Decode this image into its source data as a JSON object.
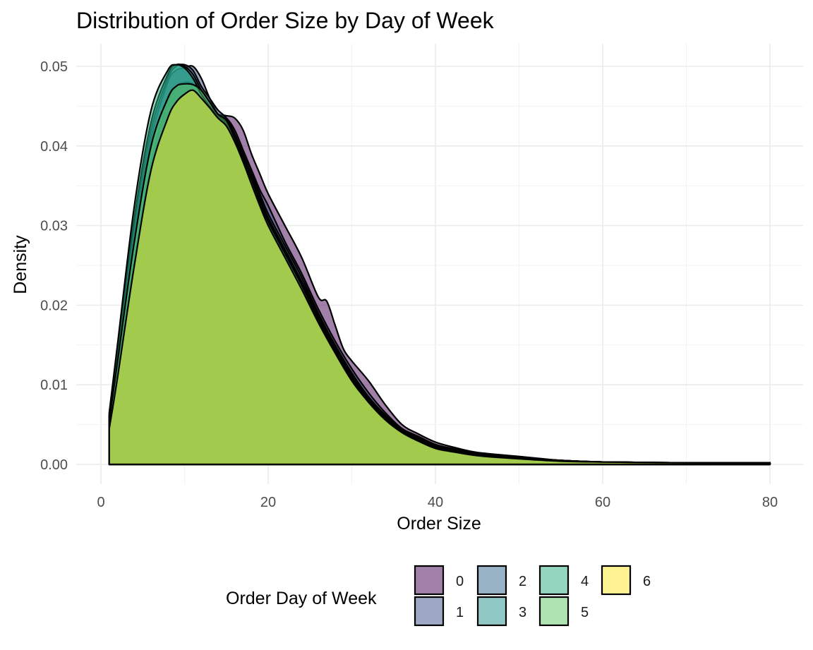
{
  "chart_data": {
    "type": "area",
    "title": "Distribution of Order Size by Day of Week",
    "xlabel": "Order Size",
    "ylabel": "Density",
    "xlim": [
      0,
      80
    ],
    "ylim": [
      0,
      0.05
    ],
    "x_ticks": [
      "0",
      "20",
      "40",
      "60",
      "80"
    ],
    "y_ticks": [
      "0.00",
      "0.01",
      "0.02",
      "0.03",
      "0.04",
      "0.05"
    ],
    "grid": true,
    "legend": {
      "title": "Order Day of Week",
      "position": "bottom"
    },
    "series": [
      {
        "name": "0",
        "color": "#440154",
        "x": [
          1,
          2,
          4,
          6,
          8,
          9,
          10,
          11,
          12,
          13,
          14,
          15,
          16,
          17,
          18,
          19,
          20,
          22,
          24,
          26,
          27,
          28,
          29,
          30,
          32,
          34,
          36,
          38,
          40,
          42,
          45,
          50,
          55,
          60,
          70,
          80
        ],
        "y": [
          0.005,
          0.012,
          0.026,
          0.038,
          0.0455,
          0.0475,
          0.048,
          0.0478,
          0.0465,
          0.045,
          0.044,
          0.0438,
          0.0435,
          0.042,
          0.039,
          0.0365,
          0.034,
          0.03,
          0.026,
          0.021,
          0.0205,
          0.0175,
          0.0145,
          0.013,
          0.0105,
          0.0075,
          0.005,
          0.0038,
          0.0028,
          0.0022,
          0.0015,
          0.001,
          0.0005,
          0.0003,
          0.0002,
          0.0002
        ]
      },
      {
        "name": "1",
        "color": "#3b528b",
        "x": [
          1,
          2,
          4,
          6,
          8,
          9,
          10,
          11,
          12,
          13,
          14,
          15,
          16,
          17,
          18,
          19,
          20,
          22,
          24,
          26,
          28,
          30,
          32,
          34,
          36,
          38,
          40,
          42,
          45,
          50,
          55,
          60,
          70,
          80
        ],
        "y": [
          0.006,
          0.014,
          0.029,
          0.041,
          0.048,
          0.0495,
          0.0498,
          0.05,
          0.0485,
          0.046,
          0.044,
          0.0435,
          0.042,
          0.0395,
          0.037,
          0.0345,
          0.0325,
          0.028,
          0.024,
          0.0195,
          0.0155,
          0.012,
          0.009,
          0.0065,
          0.0045,
          0.0035,
          0.0025,
          0.002,
          0.0014,
          0.0009,
          0.0005,
          0.0003,
          0.0002,
          0.0002
        ]
      },
      {
        "name": "2",
        "color": "#31688e",
        "x": [
          1,
          2,
          4,
          6,
          8,
          9,
          10,
          11,
          12,
          13,
          14,
          15,
          16,
          17,
          18,
          19,
          20,
          22,
          24,
          26,
          28,
          30,
          32,
          34,
          36,
          38,
          40,
          42,
          45,
          50,
          55,
          60,
          70,
          80
        ],
        "y": [
          0.006,
          0.014,
          0.03,
          0.042,
          0.0485,
          0.05,
          0.0502,
          0.0495,
          0.0475,
          0.046,
          0.0445,
          0.0435,
          0.0415,
          0.039,
          0.0365,
          0.034,
          0.0315,
          0.0275,
          0.0235,
          0.019,
          0.015,
          0.0115,
          0.0085,
          0.0062,
          0.0044,
          0.0034,
          0.0024,
          0.0019,
          0.0013,
          0.0009,
          0.0005,
          0.0003,
          0.0002,
          0.0002
        ]
      },
      {
        "name": "3",
        "color": "#21918c",
        "x": [
          1,
          2,
          4,
          6,
          8,
          9,
          10,
          11,
          12,
          13,
          14,
          15,
          16,
          17,
          18,
          19,
          20,
          22,
          24,
          26,
          28,
          30,
          32,
          34,
          36,
          38,
          40,
          42,
          45,
          50,
          55,
          60,
          70,
          80
        ],
        "y": [
          0.0062,
          0.0145,
          0.031,
          0.043,
          0.049,
          0.0502,
          0.05,
          0.049,
          0.047,
          0.0455,
          0.044,
          0.043,
          0.041,
          0.0385,
          0.036,
          0.0335,
          0.031,
          0.027,
          0.023,
          0.0188,
          0.0148,
          0.0112,
          0.0083,
          0.006,
          0.0043,
          0.0032,
          0.0023,
          0.0018,
          0.0013,
          0.0008,
          0.0005,
          0.0003,
          0.0002,
          0.0002
        ]
      },
      {
        "name": "4",
        "color": "#27ad81",
        "x": [
          1,
          2,
          4,
          6,
          8,
          9,
          10,
          11,
          12,
          13,
          14,
          15,
          16,
          17,
          18,
          19,
          20,
          22,
          24,
          26,
          28,
          30,
          32,
          34,
          36,
          38,
          40,
          42,
          45,
          50,
          55,
          60,
          70,
          80
        ],
        "y": [
          0.0065,
          0.0152,
          0.0325,
          0.0445,
          0.0495,
          0.0502,
          0.0498,
          0.0485,
          0.0465,
          0.045,
          0.0438,
          0.0428,
          0.0408,
          0.0382,
          0.0358,
          0.0332,
          0.0308,
          0.0268,
          0.0228,
          0.0185,
          0.0145,
          0.011,
          0.0082,
          0.0059,
          0.0042,
          0.0031,
          0.0022,
          0.0017,
          0.0012,
          0.0008,
          0.0005,
          0.0003,
          0.0002,
          0.0002
        ]
      },
      {
        "name": "5",
        "color": "#5ec962",
        "x": [
          1,
          2,
          4,
          6,
          8,
          9,
          10,
          11,
          12,
          13,
          14,
          15,
          16,
          17,
          18,
          19,
          20,
          22,
          24,
          26,
          28,
          30,
          32,
          34,
          36,
          38,
          40,
          42,
          45,
          50,
          55,
          60,
          70,
          80
        ],
        "y": [
          0.0055,
          0.013,
          0.028,
          0.04,
          0.046,
          0.0475,
          0.0478,
          0.0477,
          0.047,
          0.0455,
          0.044,
          0.0432,
          0.041,
          0.0385,
          0.0358,
          0.033,
          0.0305,
          0.0265,
          0.0225,
          0.0182,
          0.0143,
          0.0108,
          0.008,
          0.0058,
          0.0041,
          0.003,
          0.0021,
          0.0017,
          0.0012,
          0.0008,
          0.0005,
          0.0003,
          0.0002,
          0.0002
        ]
      },
      {
        "name": "6",
        "color": "#fde725",
        "x": [
          1,
          2,
          4,
          6,
          8,
          9,
          10,
          11,
          12,
          13,
          14,
          15,
          16,
          17,
          18,
          19,
          20,
          22,
          24,
          26,
          28,
          30,
          32,
          34,
          36,
          38,
          40,
          42,
          45,
          50,
          55,
          60,
          70,
          80
        ],
        "y": [
          0.0045,
          0.011,
          0.025,
          0.037,
          0.0435,
          0.0455,
          0.0465,
          0.047,
          0.046,
          0.0448,
          0.0435,
          0.0425,
          0.0405,
          0.038,
          0.0352,
          0.0325,
          0.03,
          0.026,
          0.022,
          0.0178,
          0.014,
          0.0105,
          0.0078,
          0.0056,
          0.004,
          0.0029,
          0.002,
          0.0016,
          0.0011,
          0.0007,
          0.0004,
          0.0003,
          0.0002,
          0.0002
        ]
      }
    ]
  }
}
